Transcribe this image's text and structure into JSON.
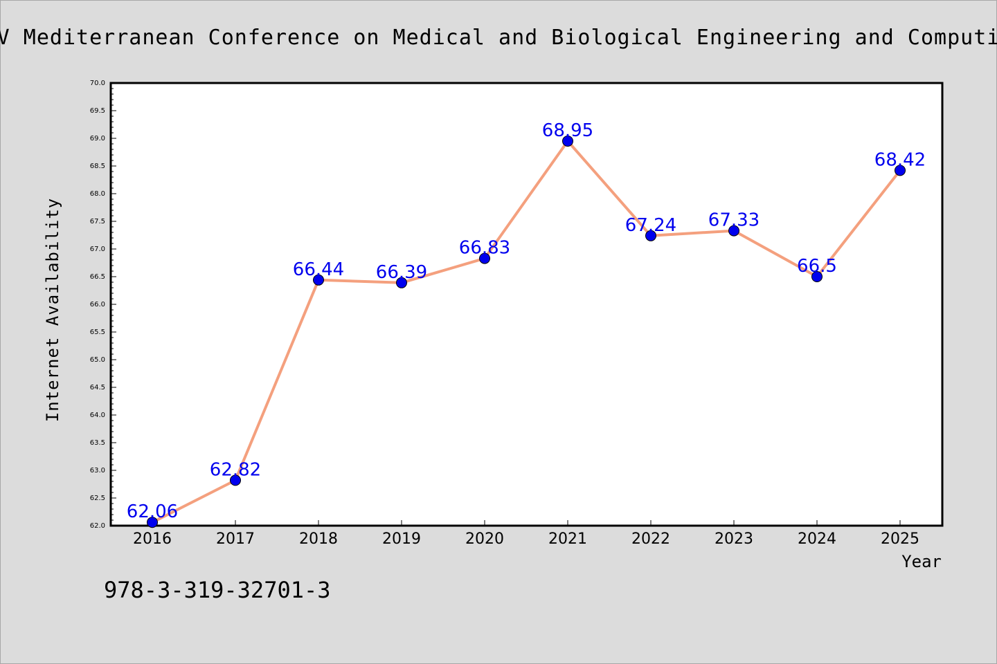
{
  "chart_data": {
    "type": "line",
    "title": "XIV Mediterranean Conference on Medical and Biological Engineering and Computing",
    "xlabel": "Year",
    "ylabel": "Internet Availability",
    "categories": [
      "2016",
      "2017",
      "2018",
      "2019",
      "2020",
      "2021",
      "2022",
      "2023",
      "2024",
      "2025"
    ],
    "series": [
      {
        "values": [
          62.06,
          62.82,
          66.44,
          66.39,
          66.83,
          68.95,
          67.24,
          67.33,
          66.5,
          68.42
        ],
        "data_labels": [
          "62.06",
          "62.82",
          "66.44",
          "66.39",
          "66.83",
          "68.95",
          "67.24",
          "67.33",
          "66.5",
          "68.42"
        ],
        "line_color": "#f4a07e",
        "marker_color": "#0000ee"
      }
    ],
    "ylim": [
      62.0,
      70.0
    ],
    "yticks": [
      "62.0",
      "62.5",
      "63.0",
      "63.5",
      "64.0",
      "64.5",
      "65.0",
      "65.5",
      "66.0",
      "66.5",
      "67.0",
      "67.5",
      "68.0",
      "68.5",
      "69.0",
      "69.5",
      "70.0"
    ],
    "grid": false,
    "legend": "none"
  },
  "footnote": "978-3-319-32701-3",
  "colors": {
    "background": "#dcdcdc",
    "plot_background": "#ffffff",
    "data_label": "#0000ee"
  }
}
